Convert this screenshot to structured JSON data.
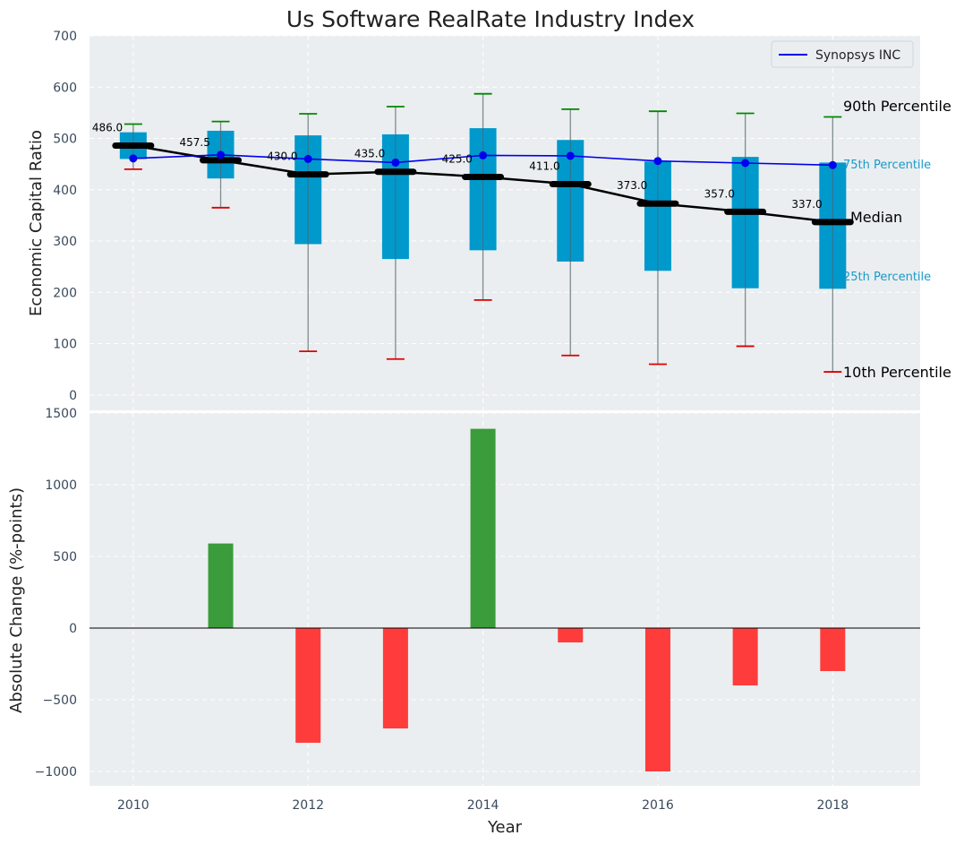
{
  "chart_data": [
    {
      "type": "box",
      "title": "Us Software RealRate Industry Index",
      "ylabel": "Economic Capital Ratio",
      "ylim": [
        -30,
        700
      ],
      "yticks": [
        0,
        100,
        200,
        300,
        400,
        500,
        600,
        700
      ],
      "years": [
        2010,
        2011,
        2012,
        2013,
        2014,
        2015,
        2016,
        2017,
        2018
      ],
      "p10": [
        440,
        365,
        85,
        70,
        185,
        77,
        60,
        95,
        45
      ],
      "p25": [
        460,
        422,
        294,
        265,
        282,
        260,
        242,
        208,
        207
      ],
      "median": [
        486.0,
        457.5,
        430.0,
        435.0,
        425.0,
        411.0,
        373.0,
        357.0,
        337.0
      ],
      "median_labels": [
        "486.0",
        "457.5",
        "430.0",
        "435.0",
        "425.0",
        "411.0",
        "373.0",
        "357.0",
        "337.0"
      ],
      "p75": [
        512,
        515,
        506,
        508,
        520,
        497,
        455,
        464,
        453
      ],
      "p90": [
        528,
        533,
        548,
        562,
        587,
        557,
        553,
        549,
        542
      ],
      "company": {
        "name": "Synopsys INC",
        "values": [
          461,
          468,
          460,
          453,
          467,
          466,
          456,
          452,
          448
        ]
      },
      "percentile_labels": {
        "p90": "90th Percentile",
        "p75": "75th Percentile",
        "median": "Median",
        "p25": "25th Percentile",
        "p10": "10th Percentile"
      },
      "legend": {
        "label": "Synopsys INC",
        "position": "top-right"
      },
      "colors": {
        "box": "#0099cc",
        "company": "#0000ee",
        "median": "#000000",
        "p90_cap": "#008800",
        "p10_cap": "#dd0000",
        "background": "#eaeef0"
      }
    },
    {
      "type": "bar",
      "xlabel": "Year",
      "ylabel": "Absolute Change (%-points)",
      "ylim": [
        -1100,
        1500
      ],
      "yticks": [
        -1000,
        -500,
        0,
        500,
        1000,
        1500
      ],
      "ytick_labels": [
        "−1000",
        "−500",
        "0",
        "500",
        "1000",
        "1500"
      ],
      "xticks": [
        "2010",
        "2012",
        "2014",
        "2016",
        "2018"
      ],
      "years": [
        2011,
        2012,
        2013,
        2014,
        2015,
        2016,
        2017,
        2018
      ],
      "values": [
        590,
        -800,
        -700,
        1390,
        -100,
        -1000,
        -400,
        -300
      ],
      "colors": {
        "positive": "#3a9c3a",
        "negative": "#ff3c3c"
      }
    }
  ]
}
